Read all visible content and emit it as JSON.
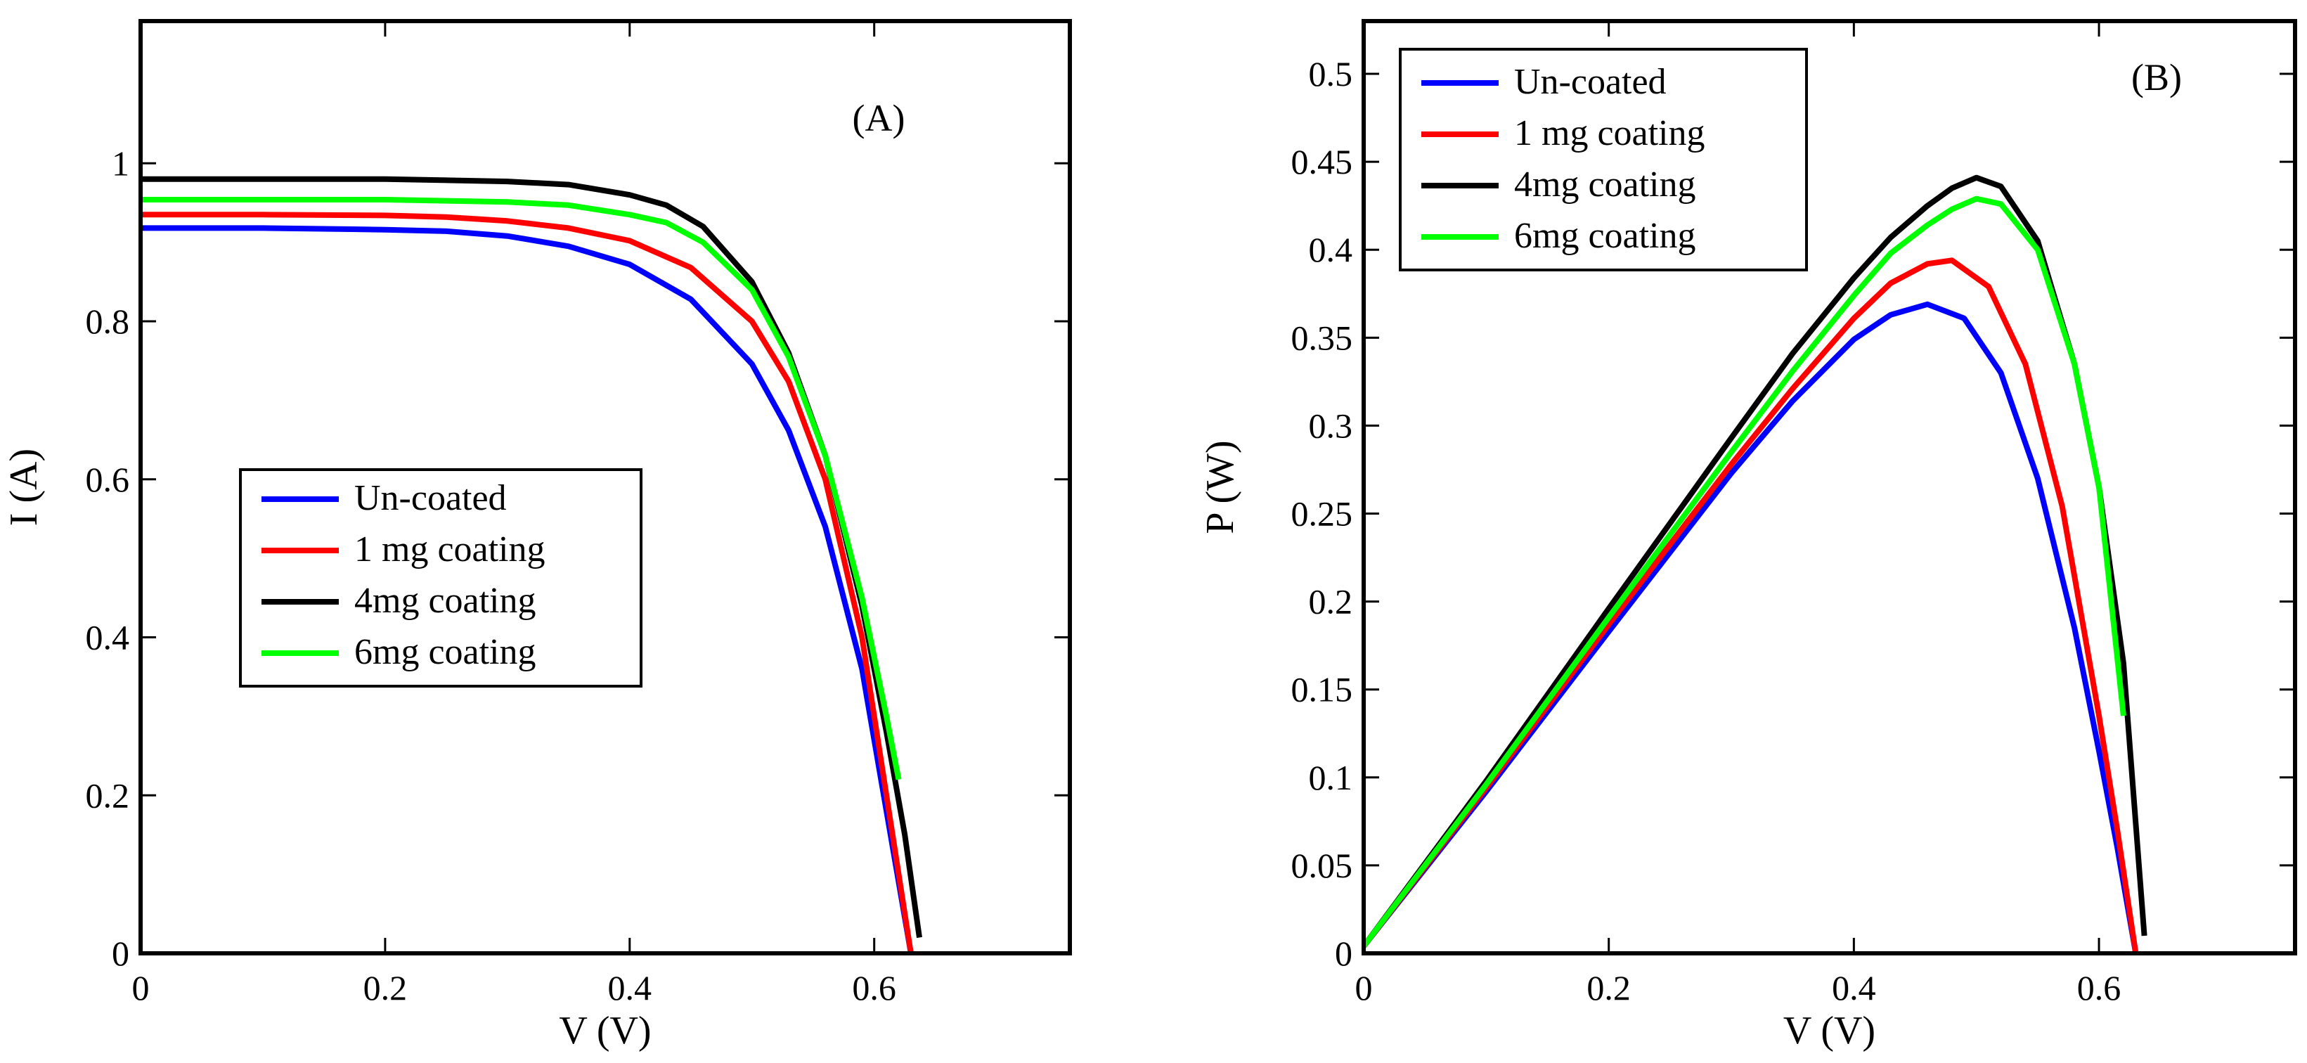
{
  "chart_data": [
    {
      "type": "line",
      "panel_label": "(A)",
      "title": "",
      "xlabel": "V (V)",
      "ylabel": "I (A)",
      "xlim": [
        0,
        0.76
      ],
      "ylim": [
        0,
        1.18
      ],
      "xticks": [
        0,
        0.2,
        0.4,
        0.6
      ],
      "xtick_labels": [
        "0",
        "0.2",
        "0.4",
        "0.6"
      ],
      "yticks": [
        0,
        0.2,
        0.4,
        0.6,
        0.8,
        1
      ],
      "ytick_labels": [
        "0",
        "0.2",
        "0.4",
        "0.6",
        "0.8",
        "1"
      ],
      "grid": false,
      "legend_position": "center-left",
      "series": [
        {
          "name": "Un-coated",
          "color": "#0000ff",
          "x": [
            0,
            0.1,
            0.2,
            0.25,
            0.3,
            0.35,
            0.4,
            0.45,
            0.5,
            0.53,
            0.56,
            0.59,
            0.61,
            0.63
          ],
          "y": [
            0.918,
            0.918,
            0.916,
            0.914,
            0.908,
            0.895,
            0.872,
            0.828,
            0.746,
            0.662,
            0.54,
            0.36,
            0.18,
            0.0
          ]
        },
        {
          "name": "1 mg coating",
          "color": "#ff0000",
          "x": [
            0,
            0.1,
            0.2,
            0.25,
            0.3,
            0.35,
            0.4,
            0.45,
            0.5,
            0.53,
            0.56,
            0.59,
            0.61,
            0.63
          ],
          "y": [
            0.935,
            0.935,
            0.934,
            0.932,
            0.927,
            0.918,
            0.902,
            0.868,
            0.8,
            0.724,
            0.6,
            0.4,
            0.2,
            0.0
          ]
        },
        {
          "name": "4mg coating",
          "color": "#000000",
          "x": [
            0,
            0.1,
            0.2,
            0.3,
            0.35,
            0.4,
            0.43,
            0.46,
            0.5,
            0.53,
            0.56,
            0.59,
            0.61,
            0.625,
            0.637
          ],
          "y": [
            0.98,
            0.98,
            0.98,
            0.977,
            0.973,
            0.96,
            0.947,
            0.92,
            0.85,
            0.76,
            0.63,
            0.44,
            0.28,
            0.15,
            0.02
          ]
        },
        {
          "name": "6mg coating",
          "color": "#00ff00",
          "x": [
            0,
            0.1,
            0.2,
            0.3,
            0.35,
            0.4,
            0.43,
            0.46,
            0.5,
            0.53,
            0.56,
            0.59,
            0.61,
            0.62
          ],
          "y": [
            0.954,
            0.954,
            0.954,
            0.951,
            0.947,
            0.935,
            0.925,
            0.9,
            0.84,
            0.755,
            0.63,
            0.45,
            0.3,
            0.22
          ]
        }
      ]
    },
    {
      "type": "line",
      "panel_label": "(B)",
      "title": "",
      "xlabel": "V (V)",
      "ylabel": "P (W)",
      "xlim": [
        0,
        0.76
      ],
      "ylim": [
        0,
        0.53
      ],
      "xticks": [
        0,
        0.2,
        0.4,
        0.6
      ],
      "xtick_labels": [
        "0",
        "0.2",
        "0.4",
        "0.6"
      ],
      "yticks": [
        0,
        0.05,
        0.1,
        0.15,
        0.2,
        0.25,
        0.3,
        0.35,
        0.4,
        0.45,
        0.5
      ],
      "ytick_labels": [
        "0",
        "0.05",
        "0.1",
        "0.15",
        "0.2",
        "0.25",
        "0.3",
        "0.35",
        "0.4",
        "0.45",
        "0.5"
      ],
      "grid": false,
      "legend_position": "top-left",
      "series": [
        {
          "name": "Un-coated",
          "color": "#0000ff",
          "x": [
            0,
            0.1,
            0.2,
            0.3,
            0.35,
            0.4,
            0.43,
            0.46,
            0.49,
            0.52,
            0.55,
            0.58,
            0.6,
            0.615,
            0.63
          ],
          "y": [
            0.004,
            0.092,
            0.183,
            0.273,
            0.314,
            0.349,
            0.363,
            0.369,
            0.361,
            0.33,
            0.27,
            0.185,
            0.115,
            0.06,
            0.0
          ]
        },
        {
          "name": "1 mg coating",
          "color": "#ff0000",
          "x": [
            0,
            0.1,
            0.2,
            0.3,
            0.35,
            0.4,
            0.43,
            0.46,
            0.48,
            0.51,
            0.54,
            0.57,
            0.6,
            0.615,
            0.63
          ],
          "y": [
            0.004,
            0.094,
            0.187,
            0.278,
            0.321,
            0.361,
            0.381,
            0.392,
            0.394,
            0.379,
            0.335,
            0.254,
            0.135,
            0.07,
            0.0
          ]
        },
        {
          "name": "4mg coating",
          "color": "#000000",
          "x": [
            0,
            0.1,
            0.2,
            0.3,
            0.35,
            0.4,
            0.43,
            0.46,
            0.48,
            0.5,
            0.52,
            0.55,
            0.58,
            0.6,
            0.62,
            0.637
          ],
          "y": [
            0.004,
            0.098,
            0.196,
            0.293,
            0.341,
            0.384,
            0.407,
            0.425,
            0.435,
            0.441,
            0.436,
            0.405,
            0.335,
            0.265,
            0.165,
            0.01
          ]
        },
        {
          "name": "6mg coating",
          "color": "#00ff00",
          "x": [
            0,
            0.1,
            0.2,
            0.3,
            0.35,
            0.4,
            0.43,
            0.46,
            0.48,
            0.5,
            0.52,
            0.55,
            0.58,
            0.6,
            0.62
          ],
          "y": [
            0.004,
            0.096,
            0.191,
            0.285,
            0.331,
            0.374,
            0.398,
            0.414,
            0.423,
            0.429,
            0.426,
            0.4,
            0.335,
            0.265,
            0.135
          ]
        }
      ]
    }
  ]
}
